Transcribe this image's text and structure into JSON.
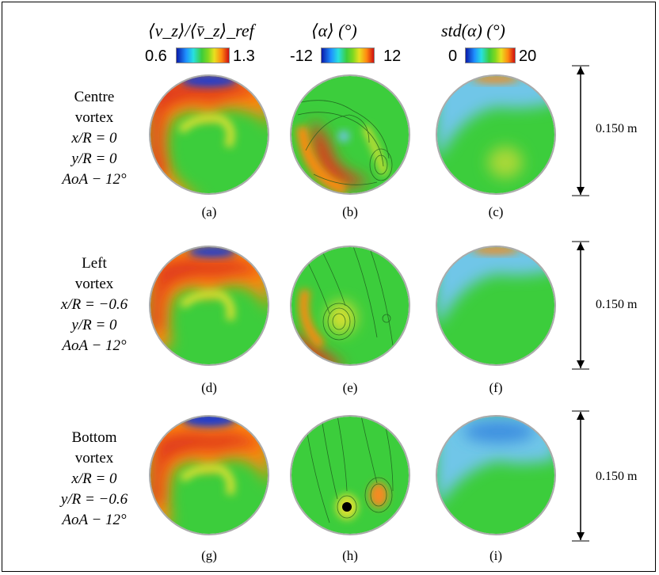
{
  "headers": {
    "col1": "⟨v_z⟩/⟨v̄_z⟩_ref",
    "col2": "⟨α⟩ (°)",
    "col3": "std(α) (°)"
  },
  "colorbars": {
    "col1": {
      "min": "0.6",
      "max": "1.3"
    },
    "col2": {
      "min": "-12",
      "max": "12"
    },
    "col3": {
      "min": "0",
      "max": "20"
    }
  },
  "rows": [
    {
      "name_line1": "Centre",
      "name_line2": "vortex",
      "x": "x/R = 0",
      "y": "y/R = 0",
      "aoa": "AoA − 12°",
      "panels": [
        "(a)",
        "(b)",
        "(c)"
      ],
      "scale": "0.150 m"
    },
    {
      "name_line1": "Left",
      "name_line2": "vortex",
      "x": "x/R = −0.6",
      "y": "y/R = 0",
      "aoa": "AoA − 12°",
      "panels": [
        "(d)",
        "(e)",
        "(f)"
      ],
      "scale": "0.150 m"
    },
    {
      "name_line1": "Bottom",
      "name_line2": "vortex",
      "x": "x/R = 0",
      "y": "y/R = −0.6",
      "aoa": "AoA − 12°",
      "panels": [
        "(g)",
        "(h)",
        "(i)"
      ],
      "scale": "0.150 m"
    }
  ],
  "colors": {
    "green": "#3ccd3c",
    "red": "#e03a1a",
    "orange": "#f58a20",
    "yellow": "#d8e030",
    "blue": "#1f3bd0",
    "cyan": "#6fc6e8"
  }
}
